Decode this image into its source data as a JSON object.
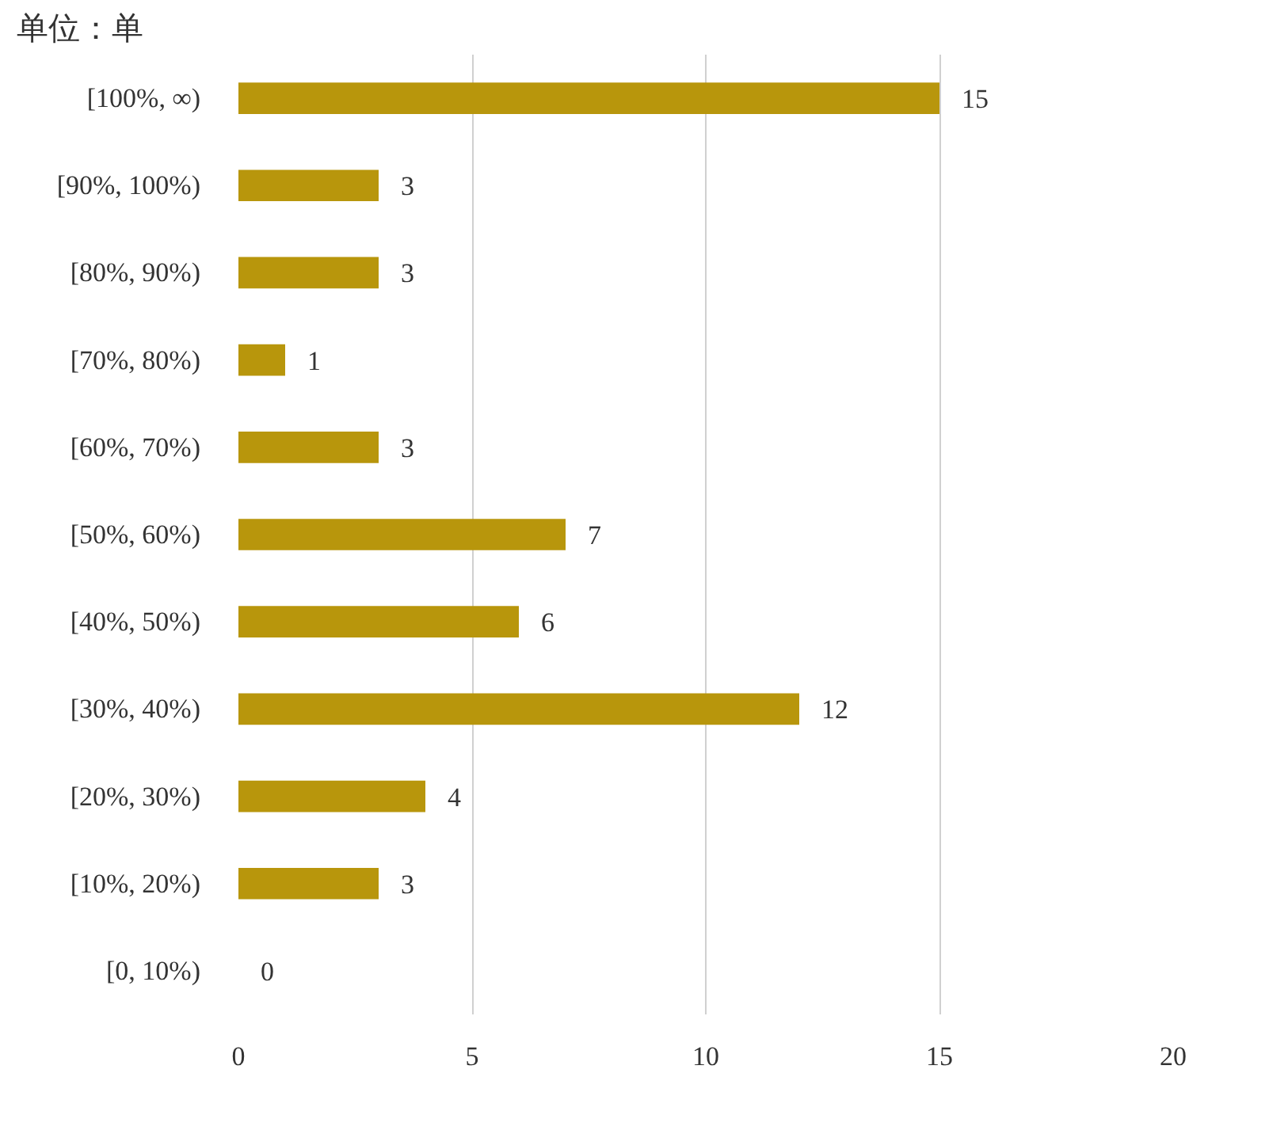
{
  "chart_data": {
    "type": "bar",
    "orientation": "horizontal",
    "title": "单位：单",
    "categories": [
      "[100%, ∞)",
      "[90%, 100%)",
      "[80%, 90%)",
      "[70%, 80%)",
      "[60%, 70%)",
      "[50%, 60%)",
      "[40%, 50%)",
      "[30%, 40%)",
      "[20%, 30%)",
      "[10%, 20%)",
      "[0, 10%)"
    ],
    "values": [
      15,
      3,
      3,
      1,
      3,
      7,
      6,
      12,
      4,
      3,
      0
    ],
    "color": "#b8960c",
    "xlim": [
      0,
      20
    ],
    "xticks": [
      0,
      5,
      10,
      15,
      20
    ],
    "grid": "x",
    "data_labels": true
  }
}
